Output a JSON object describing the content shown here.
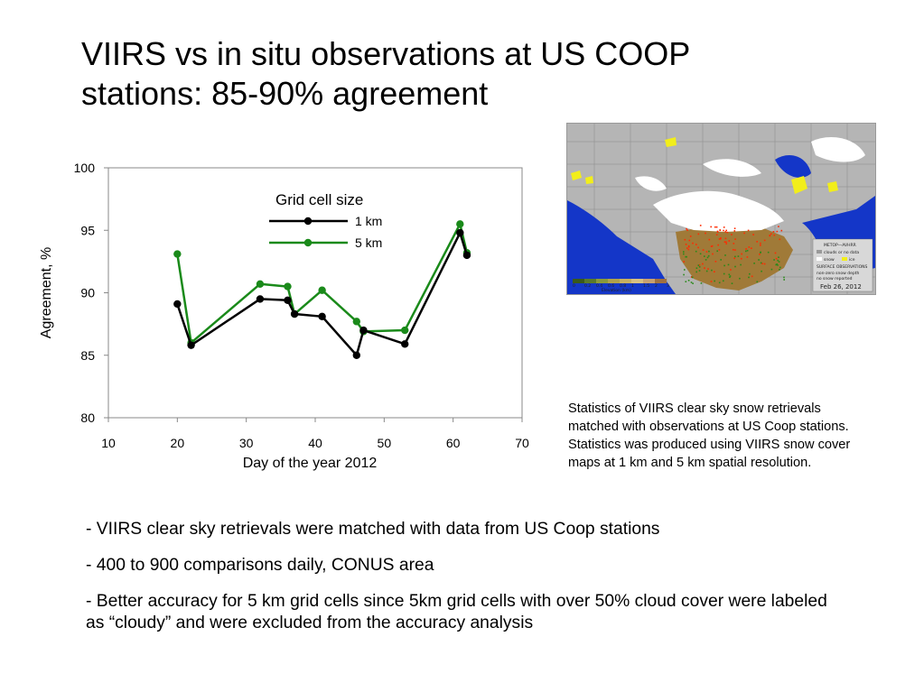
{
  "slide": {
    "title_lines": [
      "VIIRS vs in situ observations at US COOP",
      "stations: 85-90% agreement"
    ],
    "caption": "Statistics of VIIRS clear sky snow retrievals matched with observations at US Coop stations. Statistics was produced using VIIRS snow cover maps at 1 km and 5 km spatial resolution.",
    "bullets": [
      "- VIIRS clear sky retrievals were matched with data from US Coop stations",
      "- 400 to 900 comparisons daily, CONUS area",
      "- Better accuracy for 5 km grid cells since 5km grid cells with over 50% cloud cover were labeled as “cloudy” and were excluded from the accuracy analysis"
    ]
  },
  "map": {
    "date_label": "Feb 26, 2012",
    "legend": {
      "title": "METOP—AVHRR",
      "clouds": "clouds or no data",
      "snow": "snow",
      "ice": "ice",
      "obs_title": "SURFACE OBSERVATIONS",
      "nonzero": "non-zero snow depth",
      "nosnow": "no snow reported",
      "elevation_label": "Elevation (km)",
      "elevation_ticks": [
        "0",
        "0.2",
        "0.4",
        "0.6",
        "0.8",
        "1",
        "1.5",
        "2",
        "3"
      ]
    },
    "colors": {
      "ocean": "#1436c8",
      "cloud": "#b5b5b5",
      "snow": "#ffffff",
      "ice": "#f2ee1a",
      "land": "#a07a38",
      "obs_snow": "#ff2a00",
      "obs_nosnow": "#2a8a1a"
    }
  },
  "chart_data": {
    "type": "line",
    "xlabel": "Day of the year 2012",
    "ylabel": "Agreement, %",
    "xlim": [
      10,
      70
    ],
    "ylim": [
      80,
      100
    ],
    "xticks": [
      10,
      20,
      30,
      40,
      50,
      60,
      70
    ],
    "yticks": [
      80,
      85,
      90,
      95,
      100
    ],
    "grid": false,
    "legend_title": "Grid cell size",
    "legend_position": "top-center",
    "series": [
      {
        "name": "1 km",
        "color": "#000000",
        "points": [
          [
            20,
            89.1
          ],
          [
            22,
            85.8
          ],
          [
            32,
            89.5
          ],
          [
            36,
            89.4
          ],
          [
            37,
            88.3
          ],
          [
            41,
            88.1
          ],
          [
            46,
            85.0
          ],
          [
            47,
            87.0
          ],
          [
            53,
            85.9
          ],
          [
            61,
            94.8
          ],
          [
            62,
            93.0
          ]
        ]
      },
      {
        "name": "5 km",
        "color": "#1a8a1a",
        "points": [
          [
            20,
            93.1
          ],
          [
            22,
            86.0
          ],
          [
            32,
            90.7
          ],
          [
            36,
            90.5
          ],
          [
            37,
            88.3
          ],
          [
            41,
            90.2
          ],
          [
            46,
            87.7
          ],
          [
            47,
            86.9
          ],
          [
            53,
            87.0
          ],
          [
            61,
            95.5
          ],
          [
            62,
            93.2
          ]
        ]
      }
    ]
  }
}
